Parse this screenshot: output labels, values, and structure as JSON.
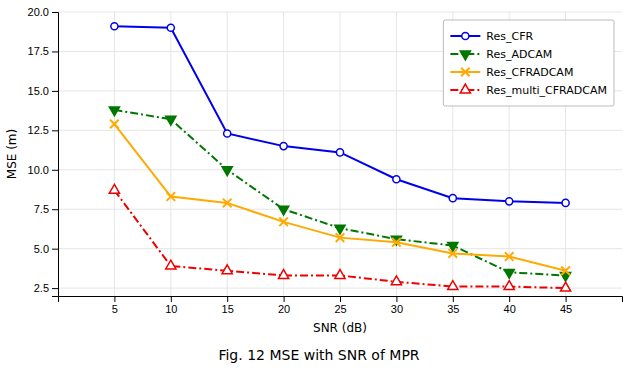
{
  "chart_data": {
    "type": "line",
    "title": "Fig. 12  MSE with SNR of MPR",
    "x_label": "SNR (dB)",
    "y_label": "MSE (m)",
    "x": [
      5,
      10,
      15,
      20,
      25,
      30,
      35,
      40,
      45
    ],
    "series": [
      {
        "name": "Res_CFR",
        "color": "#0000ee",
        "marker": "circle",
        "line_style": "solid",
        "values": [
          19.1,
          19.0,
          12.3,
          11.5,
          11.1,
          9.4,
          8.2,
          8.0,
          7.9
        ]
      },
      {
        "name": "Res_ADCAM",
        "color": "#007700",
        "marker": "triangle-down",
        "line_style": "dashdot",
        "values": [
          13.8,
          13.2,
          10.0,
          7.5,
          6.3,
          5.6,
          5.2,
          3.5,
          3.3
        ]
      },
      {
        "name": "Res_CFRADCAM",
        "color": "#ffaa00",
        "marker": "x",
        "line_style": "solid",
        "values": [
          12.9,
          8.3,
          7.9,
          6.7,
          5.7,
          5.4,
          4.7,
          4.5,
          3.6
        ]
      },
      {
        "name": "Res_multi_CFRADCAM",
        "color": "#ee0000",
        "marker": "triangle-up",
        "line_style": "dashdot",
        "values": [
          8.7,
          3.9,
          3.6,
          3.3,
          3.3,
          2.9,
          2.6,
          2.6,
          2.5
        ]
      }
    ],
    "xlim": [
      0,
      50
    ],
    "xticks": [
      5,
      10,
      15,
      20,
      25,
      30,
      35,
      40,
      45
    ],
    "ylim": [
      2,
      20
    ],
    "yticks": [
      2.5,
      {
        "value": 5,
        "label": "5.0"
      },
      7.5,
      {
        "value": 10,
        "label": "10.0"
      },
      12.5,
      {
        "value": 15,
        "label": "15.0"
      },
      17.5,
      {
        "value": 20,
        "label": "20.0"
      }
    ],
    "grid": true,
    "legend": "upper right"
  }
}
